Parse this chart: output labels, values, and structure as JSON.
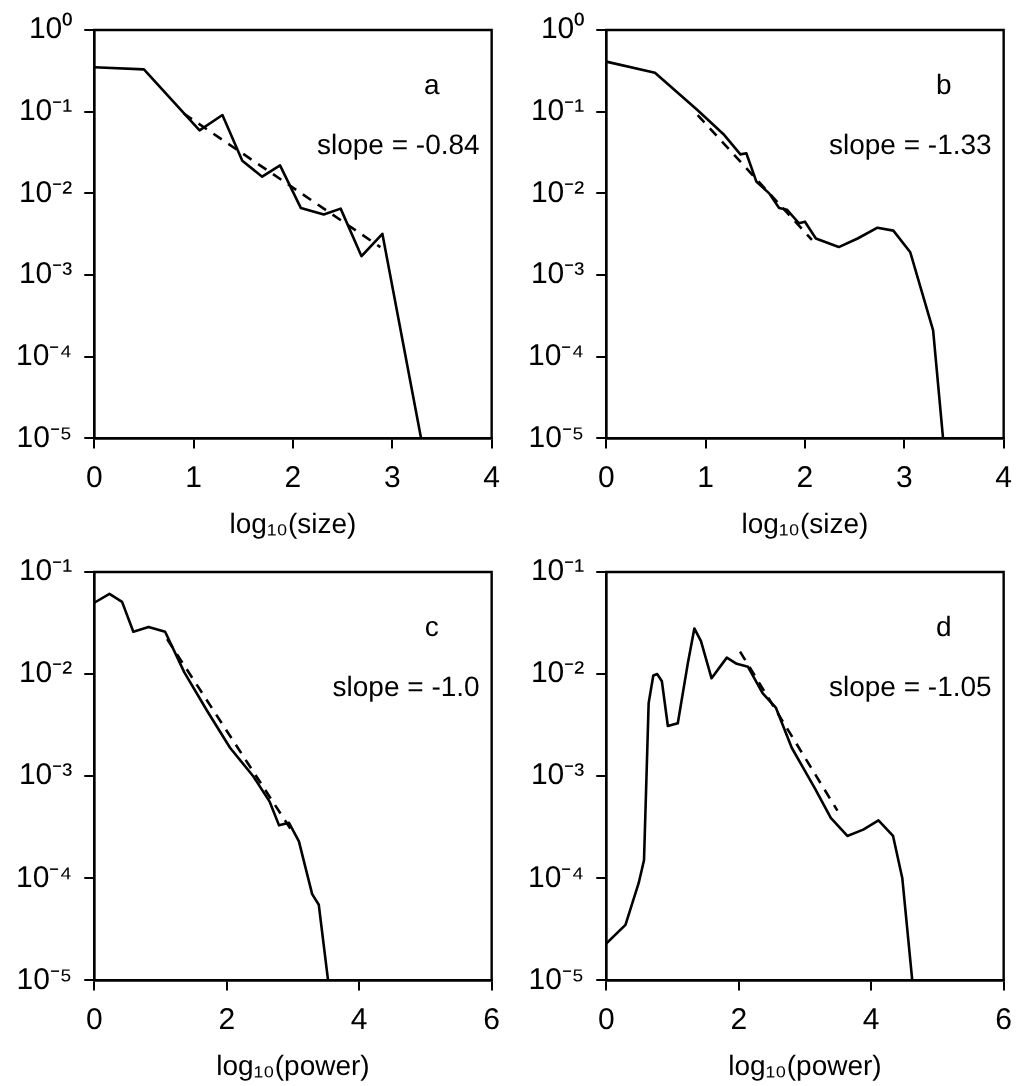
{
  "chart_data": [
    {
      "type": "line",
      "xlabel": "log₁₀(size)",
      "log": "y",
      "marker": "none",
      "annotations": [
        "a",
        "slope = -0.84"
      ],
      "xlim": [
        0,
        4
      ],
      "xticks": [
        0,
        1,
        2,
        3,
        4
      ],
      "ylim": [
        1e-05,
        1
      ],
      "yticks": [
        {
          "value": 1e-05,
          "label": "10⁻⁵"
        },
        {
          "value": 0.0001,
          "label": "10⁻⁴"
        },
        {
          "value": 0.001,
          "label": "10⁻³"
        },
        {
          "value": 0.01,
          "label": "10⁻²"
        },
        {
          "value": 0.1,
          "label": "10⁻¹"
        },
        {
          "value": 1,
          "label": "10⁰"
        }
      ],
      "series": [
        {
          "color": "#000000",
          "line_style": "solid",
          "x": [
            0,
            0.5,
            1.06,
            1.29,
            1.49,
            1.69,
            1.87,
            2.08,
            2.31,
            2.48,
            2.69,
            2.9,
            3.29
          ],
          "values": [
            0.35,
            0.33,
            0.059,
            0.091,
            0.025,
            0.016,
            0.022,
            0.0066,
            0.0055,
            0.0065,
            0.0017,
            0.0032,
            1e-05
          ]
        },
        {
          "color": "#000000",
          "line_style": "dashed",
          "x": [
            0.9,
            2.88
          ],
          "values": [
            0.095,
            0.0022
          ]
        }
      ]
    },
    {
      "type": "line",
      "xlabel": "log₁₀(size)",
      "log": "y",
      "marker": "none",
      "annotations": [
        "b",
        "slope = -1.33"
      ],
      "xlim": [
        0,
        4
      ],
      "xticks": [
        0,
        1,
        2,
        3,
        4
      ],
      "ylim": [
        1e-05,
        1
      ],
      "yticks": [
        {
          "value": 1e-05,
          "label": "10⁻⁵"
        },
        {
          "value": 0.0001,
          "label": "10⁻⁴"
        },
        {
          "value": 0.001,
          "label": "10⁻³"
        },
        {
          "value": 0.01,
          "label": "10⁻²"
        },
        {
          "value": 0.1,
          "label": "10⁻¹"
        },
        {
          "value": 1,
          "label": "10⁰"
        }
      ],
      "series": [
        {
          "color": "#000000",
          "line_style": "solid",
          "x": [
            0,
            0.49,
            0.92,
            1.18,
            1.35,
            1.41,
            1.51,
            1.64,
            1.74,
            1.82,
            1.94,
            2.0,
            2.11,
            2.34,
            2.53,
            2.73,
            2.89,
            3.06,
            3.29,
            3.39
          ],
          "values": [
            0.41,
            0.3,
            0.104,
            0.053,
            0.03,
            0.031,
            0.014,
            0.01,
            0.0066,
            0.0063,
            0.0043,
            0.0045,
            0.0028,
            0.0022,
            0.0028,
            0.0038,
            0.0035,
            0.0019,
            0.00021,
            1e-05
          ]
        },
        {
          "color": "#000000",
          "line_style": "dashed",
          "x": [
            0.92,
            2.07
          ],
          "values": [
            0.091,
            0.0027
          ]
        }
      ]
    },
    {
      "type": "line",
      "xlabel": "log₁₀(power)",
      "log": "y",
      "marker": "none",
      "annotations": [
        "c",
        "slope = -1.0"
      ],
      "xlim": [
        0,
        6
      ],
      "xticks": [
        0,
        2,
        4,
        6
      ],
      "ylim": [
        1e-05,
        0.1
      ],
      "yticks": [
        {
          "value": 1e-05,
          "label": "10⁻⁵"
        },
        {
          "value": 0.0001,
          "label": "10⁻⁴"
        },
        {
          "value": 0.001,
          "label": "10⁻³"
        },
        {
          "value": 0.01,
          "label": "10⁻²"
        },
        {
          "value": 0.1,
          "label": "10⁻¹"
        }
      ],
      "series": [
        {
          "color": "#000000",
          "line_style": "solid",
          "x": [
            0,
            0.23,
            0.42,
            0.59,
            0.82,
            1.07,
            1.36,
            1.71,
            2.05,
            2.4,
            2.65,
            2.79,
            2.94,
            3.09,
            3.29,
            3.39,
            3.53
          ],
          "values": [
            0.05,
            0.061,
            0.051,
            0.026,
            0.029,
            0.026,
            0.0104,
            0.0043,
            0.0019,
            0.001,
            0.00056,
            0.00033,
            0.00035,
            0.00023,
            7e-05,
            5.5e-05,
            1e-05
          ]
        },
        {
          "color": "#000000",
          "line_style": "dashed",
          "x": [
            1.1,
            3.0
          ],
          "values": [
            0.022,
            0.00028
          ]
        }
      ]
    },
    {
      "type": "line",
      "xlabel": "log₁₀(power)",
      "log": "y",
      "marker": "none",
      "annotations": [
        "d",
        "slope = -1.05"
      ],
      "xlim": [
        0,
        6
      ],
      "xticks": [
        0,
        2,
        4,
        6
      ],
      "ylim": [
        1e-05,
        0.1
      ],
      "yticks": [
        {
          "value": 1e-05,
          "label": "10⁻⁵"
        },
        {
          "value": 0.0001,
          "label": "10⁻⁴"
        },
        {
          "value": 0.001,
          "label": "10⁻³"
        },
        {
          "value": 0.01,
          "label": "10⁻²"
        },
        {
          "value": 0.1,
          "label": "10⁻¹"
        }
      ],
      "series": [
        {
          "color": "#000000",
          "line_style": "solid",
          "x": [
            0,
            0.29,
            0.49,
            0.57,
            0.64,
            0.71,
            0.77,
            0.84,
            0.93,
            1.08,
            1.23,
            1.33,
            1.43,
            1.59,
            1.82,
            1.97,
            2.14,
            2.36,
            2.56,
            2.8,
            3.15,
            3.39,
            3.64,
            3.88,
            4.11,
            4.33,
            4.47,
            4.62
          ],
          "values": [
            2.3e-05,
            3.5e-05,
            9e-05,
            0.00015,
            0.0052,
            0.0097,
            0.01,
            0.0085,
            0.0031,
            0.0033,
            0.0126,
            0.028,
            0.021,
            0.0091,
            0.0145,
            0.0126,
            0.0118,
            0.0065,
            0.0047,
            0.0019,
            0.00076,
            0.00039,
            0.00026,
            0.0003,
            0.00037,
            0.00026,
            0.0001,
            1e-05
          ]
        },
        {
          "color": "#000000",
          "line_style": "dashed",
          "x": [
            2.02,
            3.49
          ],
          "values": [
            0.0166,
            0.00046
          ]
        }
      ]
    }
  ]
}
